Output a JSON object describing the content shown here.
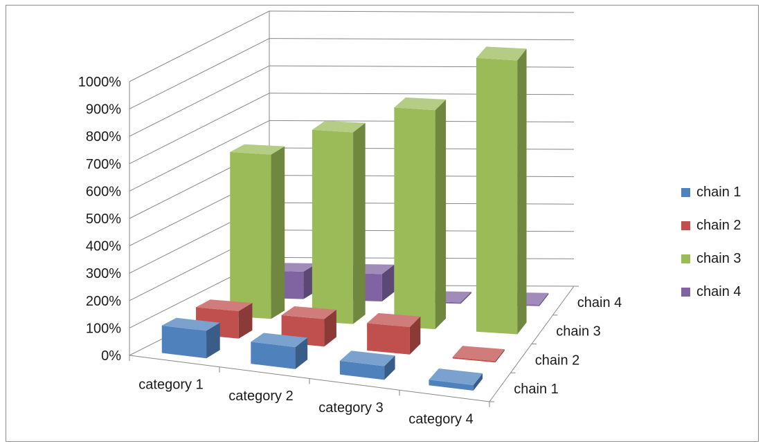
{
  "chart_data": {
    "type": "bar",
    "subtype": "3d-column",
    "title": "",
    "categories": [
      "category 1",
      "category 2",
      "category 3",
      "category 4"
    ],
    "series": [
      {
        "name": "chain 1",
        "color": "#4f81bd",
        "values": [
          100,
          80,
          50,
          20
        ]
      },
      {
        "name": "chain 2",
        "color": "#c0504d",
        "values": [
          100,
          100,
          100,
          0
        ]
      },
      {
        "name": "chain 3",
        "color": "#9bbb59",
        "values": [
          600,
          700,
          800,
          1000
        ]
      },
      {
        "name": "chain 4",
        "color": "#8064a2",
        "values": [
          100,
          100,
          0,
          0
        ]
      }
    ],
    "y_ticks": [
      "0%",
      "100%",
      "200%",
      "300%",
      "400%",
      "500%",
      "600%",
      "700%",
      "800%",
      "900%",
      "1000%"
    ],
    "ylim": [
      0,
      1000
    ],
    "y_unit": "%",
    "grid": true,
    "legend_position": "right"
  }
}
